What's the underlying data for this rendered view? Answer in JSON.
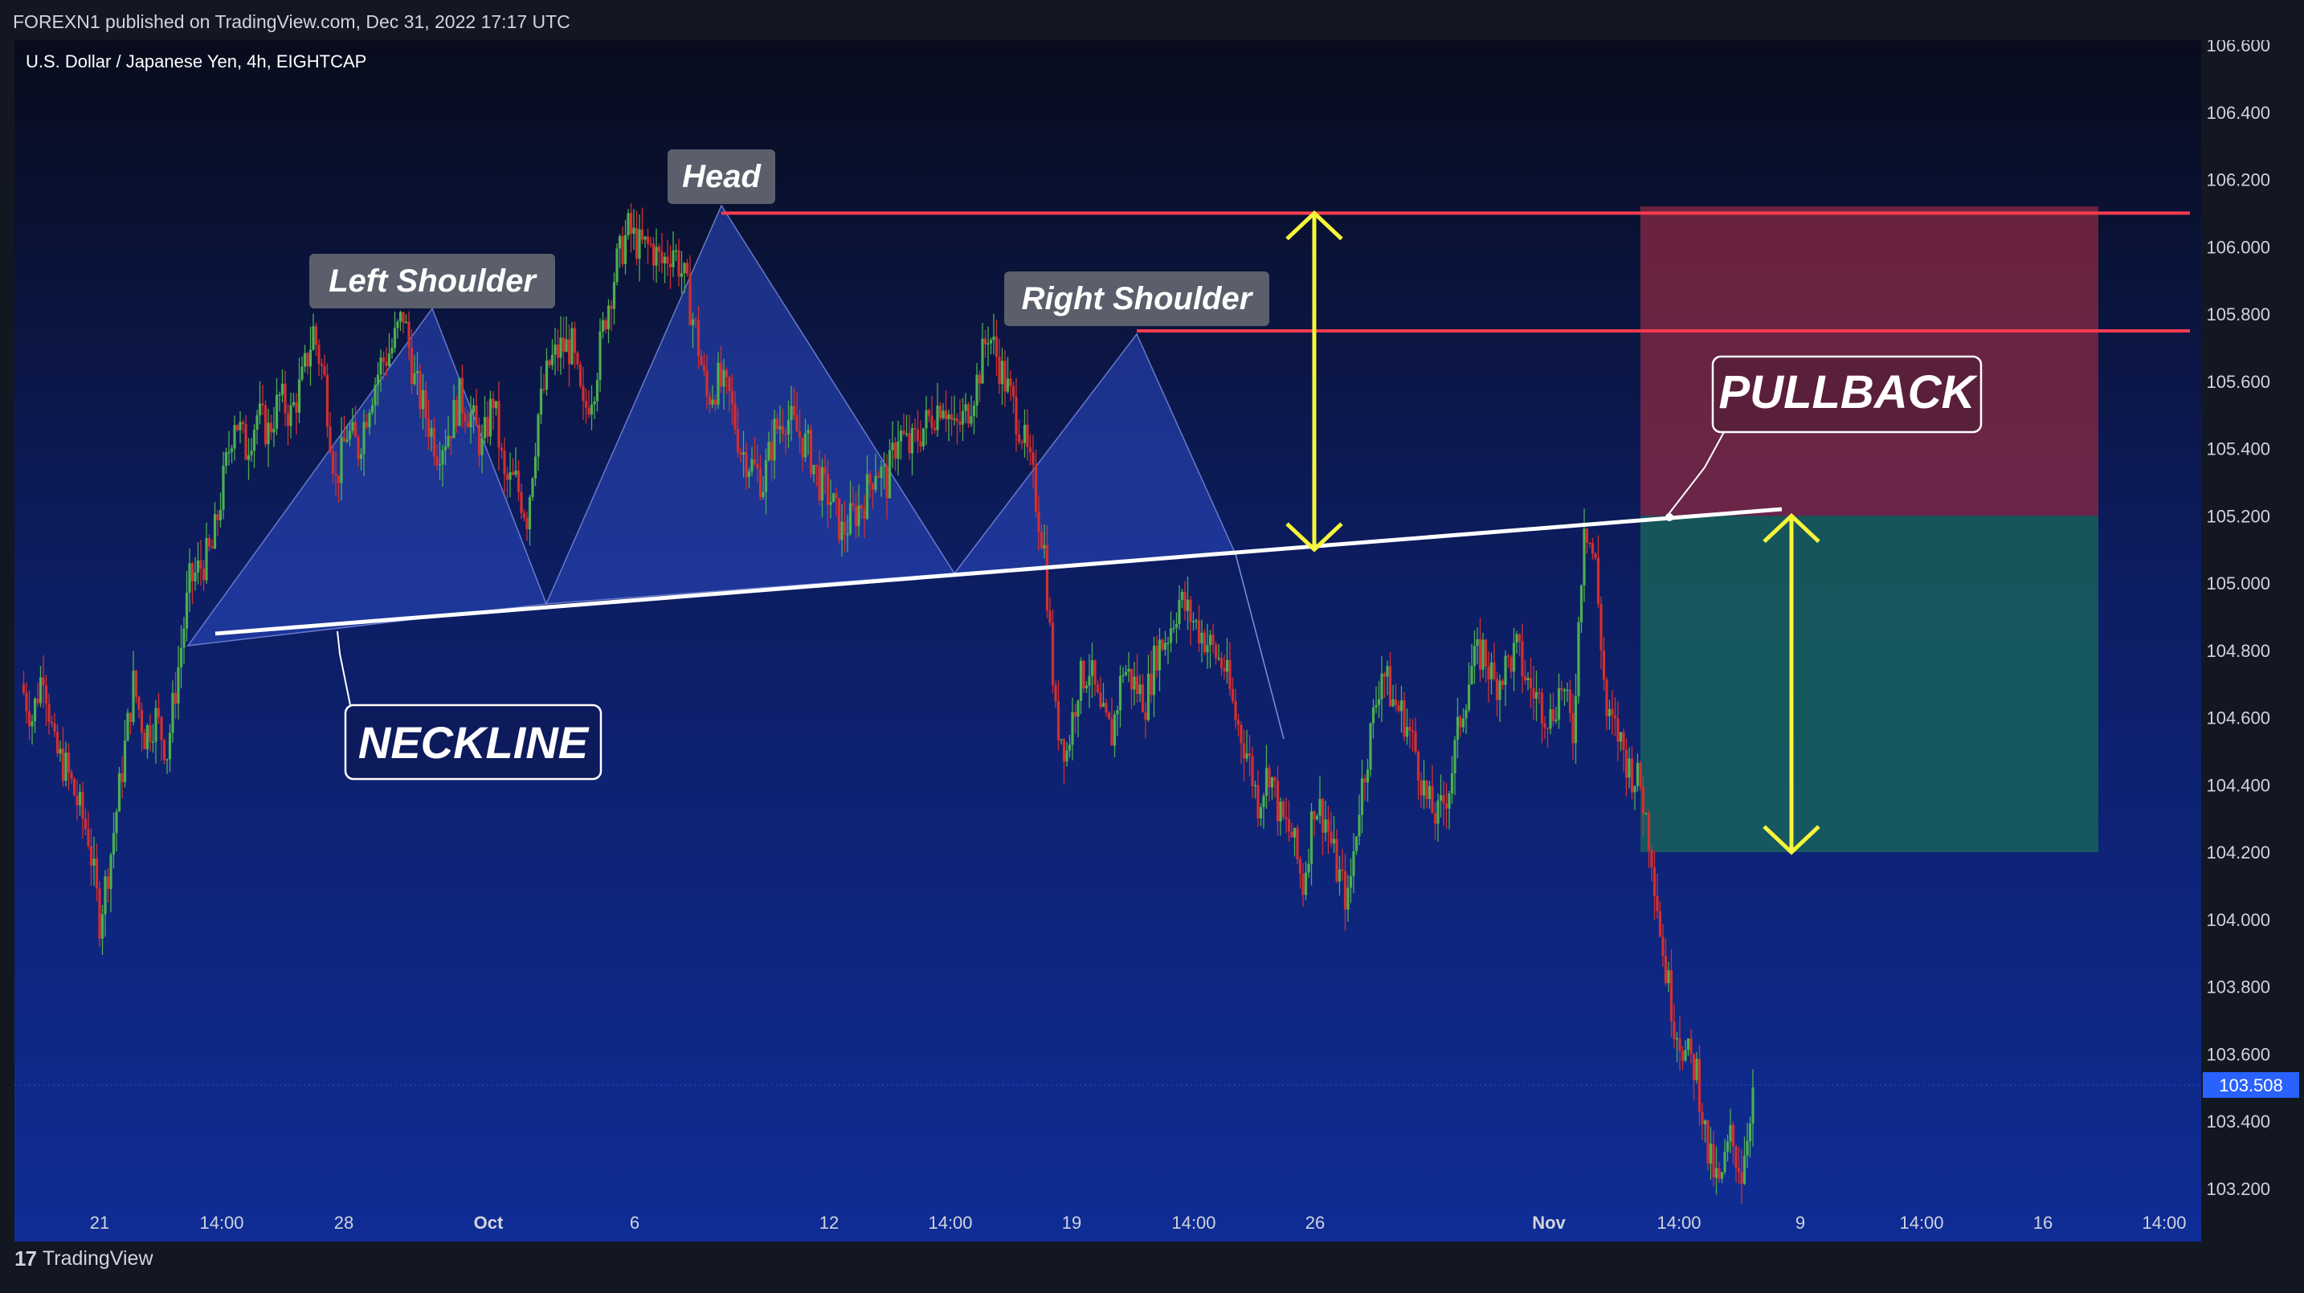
{
  "header": {
    "publisher": "FOREXN1 published on TradingView.com, Dec 31, 2022 17:17 UTC",
    "symbol": "U.S. Dollar / Japanese Yen, 4h, EIGHTCAP"
  },
  "footer": {
    "logo_mark": "17",
    "brand": "TradingView"
  },
  "colors": {
    "background_top": "#0a0f24",
    "background_bottom": "#0f2a8c",
    "up_candle": "#4caf50",
    "down_candle": "#d32f2f",
    "neckline": "#ffffff",
    "resistance": "#ff3b4e",
    "arrow": "#f5f53b",
    "pattern_fill": "#2b4ac4",
    "stop_zone": "#8a2a44",
    "target_zone": "#1a6a5a",
    "price_label": "#2962ff"
  },
  "chart_data": {
    "type": "candlestick",
    "symbol": "U.S. Dollar / Japanese Yen",
    "timeframe": "4h",
    "exchange": "EIGHTCAP",
    "y_axis": {
      "ticks": [
        "106.600",
        "106.400",
        "106.200",
        "106.000",
        "105.800",
        "105.600",
        "105.400",
        "105.200",
        "105.000",
        "104.800",
        "104.600",
        "104.400",
        "104.200",
        "104.000",
        "103.800",
        "103.600",
        "103.400",
        "103.200"
      ],
      "range": [
        103.1,
        106.63
      ]
    },
    "x_axis": {
      "ticks": [
        "21",
        "14:00",
        "28",
        "Oct",
        "6",
        "12",
        "14:00",
        "19",
        "14:00",
        "26",
        "Nov",
        "14:00",
        "9",
        "14:00",
        "16",
        "14:00"
      ],
      "bold_ticks": [
        "Oct",
        "Nov"
      ]
    },
    "last_price": "103.508",
    "close_path": [
      [
        0,
        104.7
      ],
      [
        4,
        104.6
      ],
      [
        8,
        104.75
      ],
      [
        12,
        104.5
      ],
      [
        16,
        104.45
      ],
      [
        20,
        104.35
      ],
      [
        24,
        104.25
      ],
      [
        28,
        104.0
      ],
      [
        32,
        104.2
      ],
      [
        36,
        104.45
      ],
      [
        40,
        104.7
      ],
      [
        44,
        104.55
      ],
      [
        48,
        104.6
      ],
      [
        52,
        104.5
      ],
      [
        56,
        104.75
      ],
      [
        60,
        105.0
      ],
      [
        64,
        105.05
      ],
      [
        68,
        105.1
      ],
      [
        72,
        105.3
      ],
      [
        76,
        105.5
      ],
      [
        80,
        105.4
      ],
      [
        84,
        105.5
      ],
      [
        88,
        105.45
      ],
      [
        92,
        105.55
      ],
      [
        96,
        105.5
      ],
      [
        100,
        105.6
      ],
      [
        104,
        105.75
      ],
      [
        108,
        105.6
      ],
      [
        112,
        105.3
      ],
      [
        116,
        105.45
      ],
      [
        120,
        105.4
      ],
      [
        124,
        105.55
      ],
      [
        128,
        105.65
      ],
      [
        132,
        105.7
      ],
      [
        136,
        105.8
      ],
      [
        140,
        105.6
      ],
      [
        144,
        105.5
      ],
      [
        148,
        105.4
      ],
      [
        152,
        105.45
      ],
      [
        156,
        105.55
      ],
      [
        160,
        105.5
      ],
      [
        164,
        105.4
      ],
      [
        168,
        105.55
      ],
      [
        172,
        105.3
      ],
      [
        176,
        105.3
      ],
      [
        180,
        105.2
      ],
      [
        184,
        105.5
      ],
      [
        188,
        105.65
      ],
      [
        192,
        105.7
      ],
      [
        196,
        105.7
      ],
      [
        200,
        105.5
      ],
      [
        204,
        105.6
      ],
      [
        208,
        105.8
      ],
      [
        212,
        105.95
      ],
      [
        216,
        106.05
      ],
      [
        220,
        106.0
      ],
      [
        224,
        106.0
      ],
      [
        228,
        105.95
      ],
      [
        232,
        106.0
      ],
      [
        236,
        105.9
      ],
      [
        240,
        105.75
      ],
      [
        244,
        105.55
      ],
      [
        248,
        105.6
      ],
      [
        252,
        105.55
      ],
      [
        256,
        105.4
      ],
      [
        260,
        105.35
      ],
      [
        264,
        105.3
      ],
      [
        268,
        105.45
      ],
      [
        272,
        105.5
      ],
      [
        276,
        105.45
      ],
      [
        280,
        105.4
      ],
      [
        284,
        105.3
      ],
      [
        288,
        105.25
      ],
      [
        292,
        105.15
      ],
      [
        296,
        105.2
      ],
      [
        300,
        105.25
      ],
      [
        304,
        105.35
      ],
      [
        308,
        105.3
      ],
      [
        312,
        105.45
      ],
      [
        316,
        105.4
      ],
      [
        320,
        105.45
      ],
      [
        324,
        105.5
      ],
      [
        328,
        105.55
      ],
      [
        332,
        105.45
      ],
      [
        336,
        105.5
      ],
      [
        340,
        105.6
      ],
      [
        344,
        105.75
      ],
      [
        348,
        105.65
      ],
      [
        352,
        105.55
      ],
      [
        356,
        105.45
      ],
      [
        360,
        105.3
      ],
      [
        364,
        105.1
      ],
      [
        368,
        104.6
      ],
      [
        372,
        104.5
      ],
      [
        376,
        104.7
      ],
      [
        380,
        104.75
      ],
      [
        384,
        104.6
      ],
      [
        388,
        104.55
      ],
      [
        392,
        104.75
      ],
      [
        396,
        104.7
      ],
      [
        400,
        104.65
      ],
      [
        404,
        104.8
      ],
      [
        408,
        104.85
      ],
      [
        412,
        104.95
      ],
      [
        416,
        104.9
      ],
      [
        420,
        104.85
      ],
      [
        424,
        104.8
      ],
      [
        428,
        104.75
      ],
      [
        432,
        104.6
      ],
      [
        436,
        104.5
      ],
      [
        440,
        104.35
      ],
      [
        444,
        104.45
      ],
      [
        448,
        104.3
      ],
      [
        452,
        104.25
      ],
      [
        456,
        104.1
      ],
      [
        460,
        104.35
      ],
      [
        464,
        104.3
      ],
      [
        468,
        104.15
      ],
      [
        472,
        104.05
      ],
      [
        476,
        104.35
      ],
      [
        480,
        104.55
      ],
      [
        484,
        104.75
      ],
      [
        488,
        104.65
      ],
      [
        492,
        104.6
      ],
      [
        496,
        104.5
      ],
      [
        500,
        104.35
      ],
      [
        504,
        104.3
      ],
      [
        508,
        104.4
      ],
      [
        512,
        104.6
      ],
      [
        516,
        104.75
      ],
      [
        520,
        104.8
      ],
      [
        524,
        104.7
      ],
      [
        528,
        104.75
      ],
      [
        532,
        104.8
      ],
      [
        536,
        104.7
      ],
      [
        540,
        104.65
      ],
      [
        544,
        104.6
      ],
      [
        548,
        104.7
      ],
      [
        552,
        104.55
      ],
      [
        556,
        105.2
      ],
      [
        560,
        105.05
      ],
      [
        564,
        104.6
      ],
      [
        568,
        104.55
      ],
      [
        572,
        104.45
      ],
      [
        576,
        104.4
      ],
      [
        580,
        104.2
      ],
      [
        584,
        103.9
      ],
      [
        588,
        103.7
      ],
      [
        592,
        103.6
      ],
      [
        596,
        103.55
      ],
      [
        600,
        103.3
      ],
      [
        604,
        103.2
      ],
      [
        608,
        103.35
      ],
      [
        612,
        103.25
      ],
      [
        616,
        103.5
      ]
    ],
    "annotations": [
      {
        "label": "Left Shoulder",
        "level": 105.8
      },
      {
        "label": "Head",
        "level": 106.1
      },
      {
        "label": "Right Shoulder",
        "level": 105.75
      },
      {
        "label": "NECKLINE",
        "from": 104.85,
        "to": 105.22
      },
      {
        "label": "PULLBACK",
        "level": 105.2
      }
    ],
    "resistance_levels": [
      106.1,
      105.75
    ],
    "stop_zone": [
      105.2,
      106.12
    ],
    "target_zone": [
      104.2,
      105.2
    ]
  },
  "labels": {
    "left_shoulder": "Left Shoulder",
    "head": "Head",
    "right_shoulder": "Right Shoulder",
    "neckline": "NECKLINE",
    "pullback": "PULLBACK"
  }
}
